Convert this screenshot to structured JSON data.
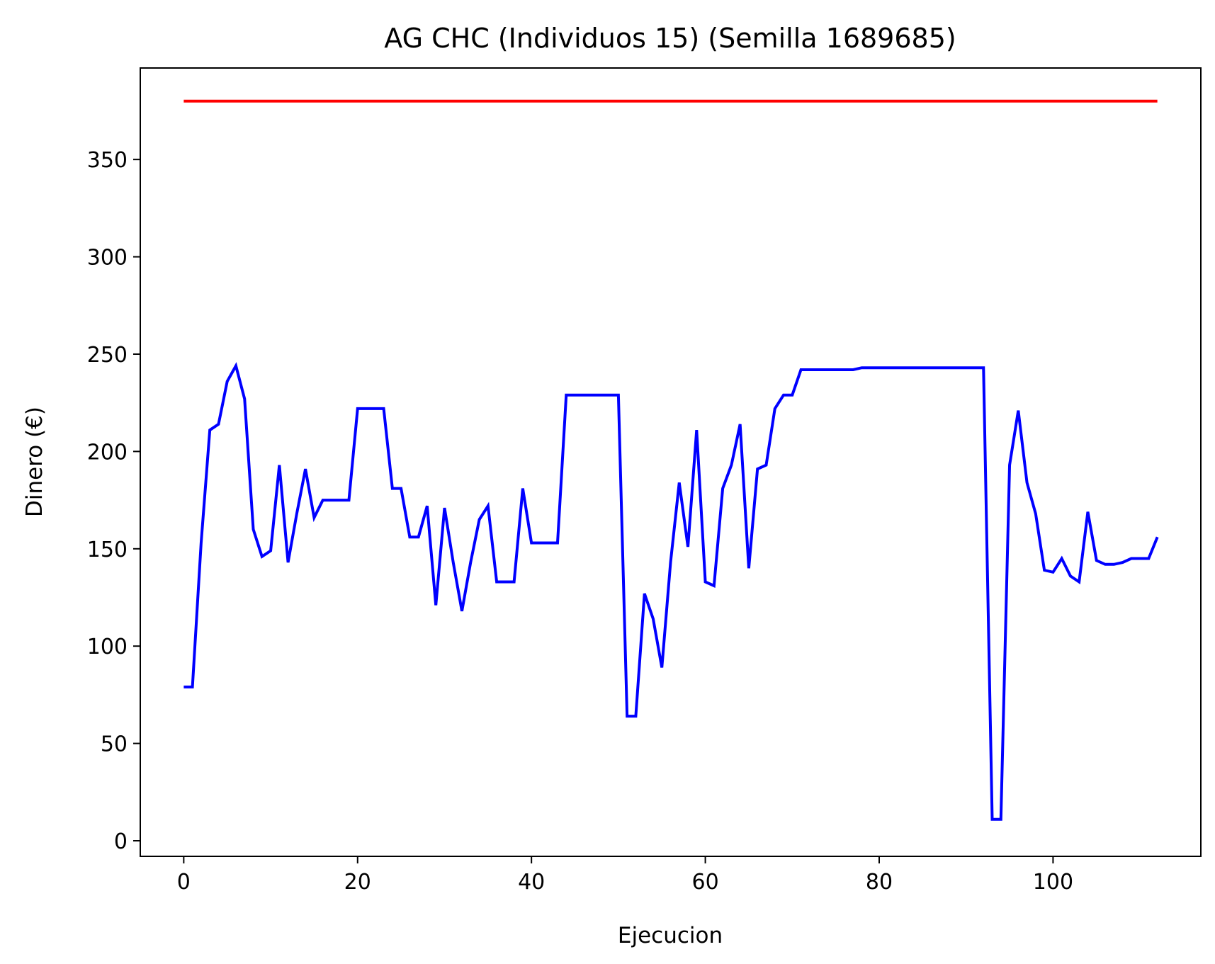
{
  "chart_data": {
    "type": "line",
    "title": "AG CHC (Individuos 15) (Semilla 1689685)",
    "xlabel": "Ejecucion",
    "ylabel": "Dinero (€)",
    "xlim": [
      -5,
      117
    ],
    "ylim": [
      -8,
      397
    ],
    "xticks": [
      0,
      20,
      40,
      60,
      80,
      100
    ],
    "yticks": [
      0,
      50,
      100,
      150,
      200,
      250,
      300,
      350
    ],
    "grid": false,
    "series": [
      {
        "color": "#ff0000",
        "x": [
          0,
          112
        ],
        "values": [
          380,
          380
        ]
      },
      {
        "color": "#0000ff",
        "x": [
          0,
          1,
          2,
          3,
          4,
          5,
          6,
          7,
          8,
          9,
          10,
          11,
          12,
          13,
          14,
          15,
          16,
          17,
          18,
          19,
          20,
          21,
          22,
          23,
          24,
          25,
          26,
          27,
          28,
          29,
          30,
          31,
          32,
          33,
          34,
          35,
          36,
          37,
          38,
          39,
          40,
          41,
          42,
          43,
          44,
          45,
          46,
          47,
          48,
          49,
          50,
          51,
          52,
          53,
          54,
          55,
          56,
          57,
          58,
          59,
          60,
          61,
          62,
          63,
          64,
          65,
          66,
          67,
          68,
          69,
          70,
          71,
          72,
          73,
          74,
          75,
          76,
          77,
          78,
          79,
          80,
          81,
          82,
          83,
          84,
          85,
          86,
          87,
          88,
          89,
          90,
          91,
          92,
          93,
          94,
          95,
          96,
          97,
          98,
          99,
          100,
          101,
          102,
          103,
          104,
          105,
          106,
          107,
          108,
          109,
          110,
          111,
          112
        ],
        "values": [
          79,
          79,
          153,
          211,
          214,
          236,
          244,
          227,
          160,
          146,
          149,
          193,
          143,
          168,
          191,
          166,
          175,
          175,
          175,
          175,
          222,
          222,
          222,
          222,
          181,
          181,
          156,
          156,
          172,
          121,
          171,
          143,
          118,
          143,
          165,
          172,
          133,
          133,
          133,
          181,
          153,
          153,
          153,
          153,
          229,
          229,
          229,
          229,
          229,
          229,
          229,
          64,
          64,
          127,
          114,
          89,
          143,
          184,
          151,
          211,
          133,
          131,
          181,
          193,
          214,
          140,
          191,
          193,
          222,
          229,
          229,
          242,
          242,
          242,
          242,
          242,
          242,
          242,
          243,
          243,
          243,
          243,
          243,
          243,
          243,
          243,
          243,
          243,
          243,
          243,
          243,
          243,
          243,
          11,
          11,
          193,
          221,
          184,
          168,
          139,
          138,
          145,
          136,
          133,
          169,
          144,
          142,
          142,
          143,
          145,
          145,
          145,
          156
        ]
      }
    ]
  }
}
